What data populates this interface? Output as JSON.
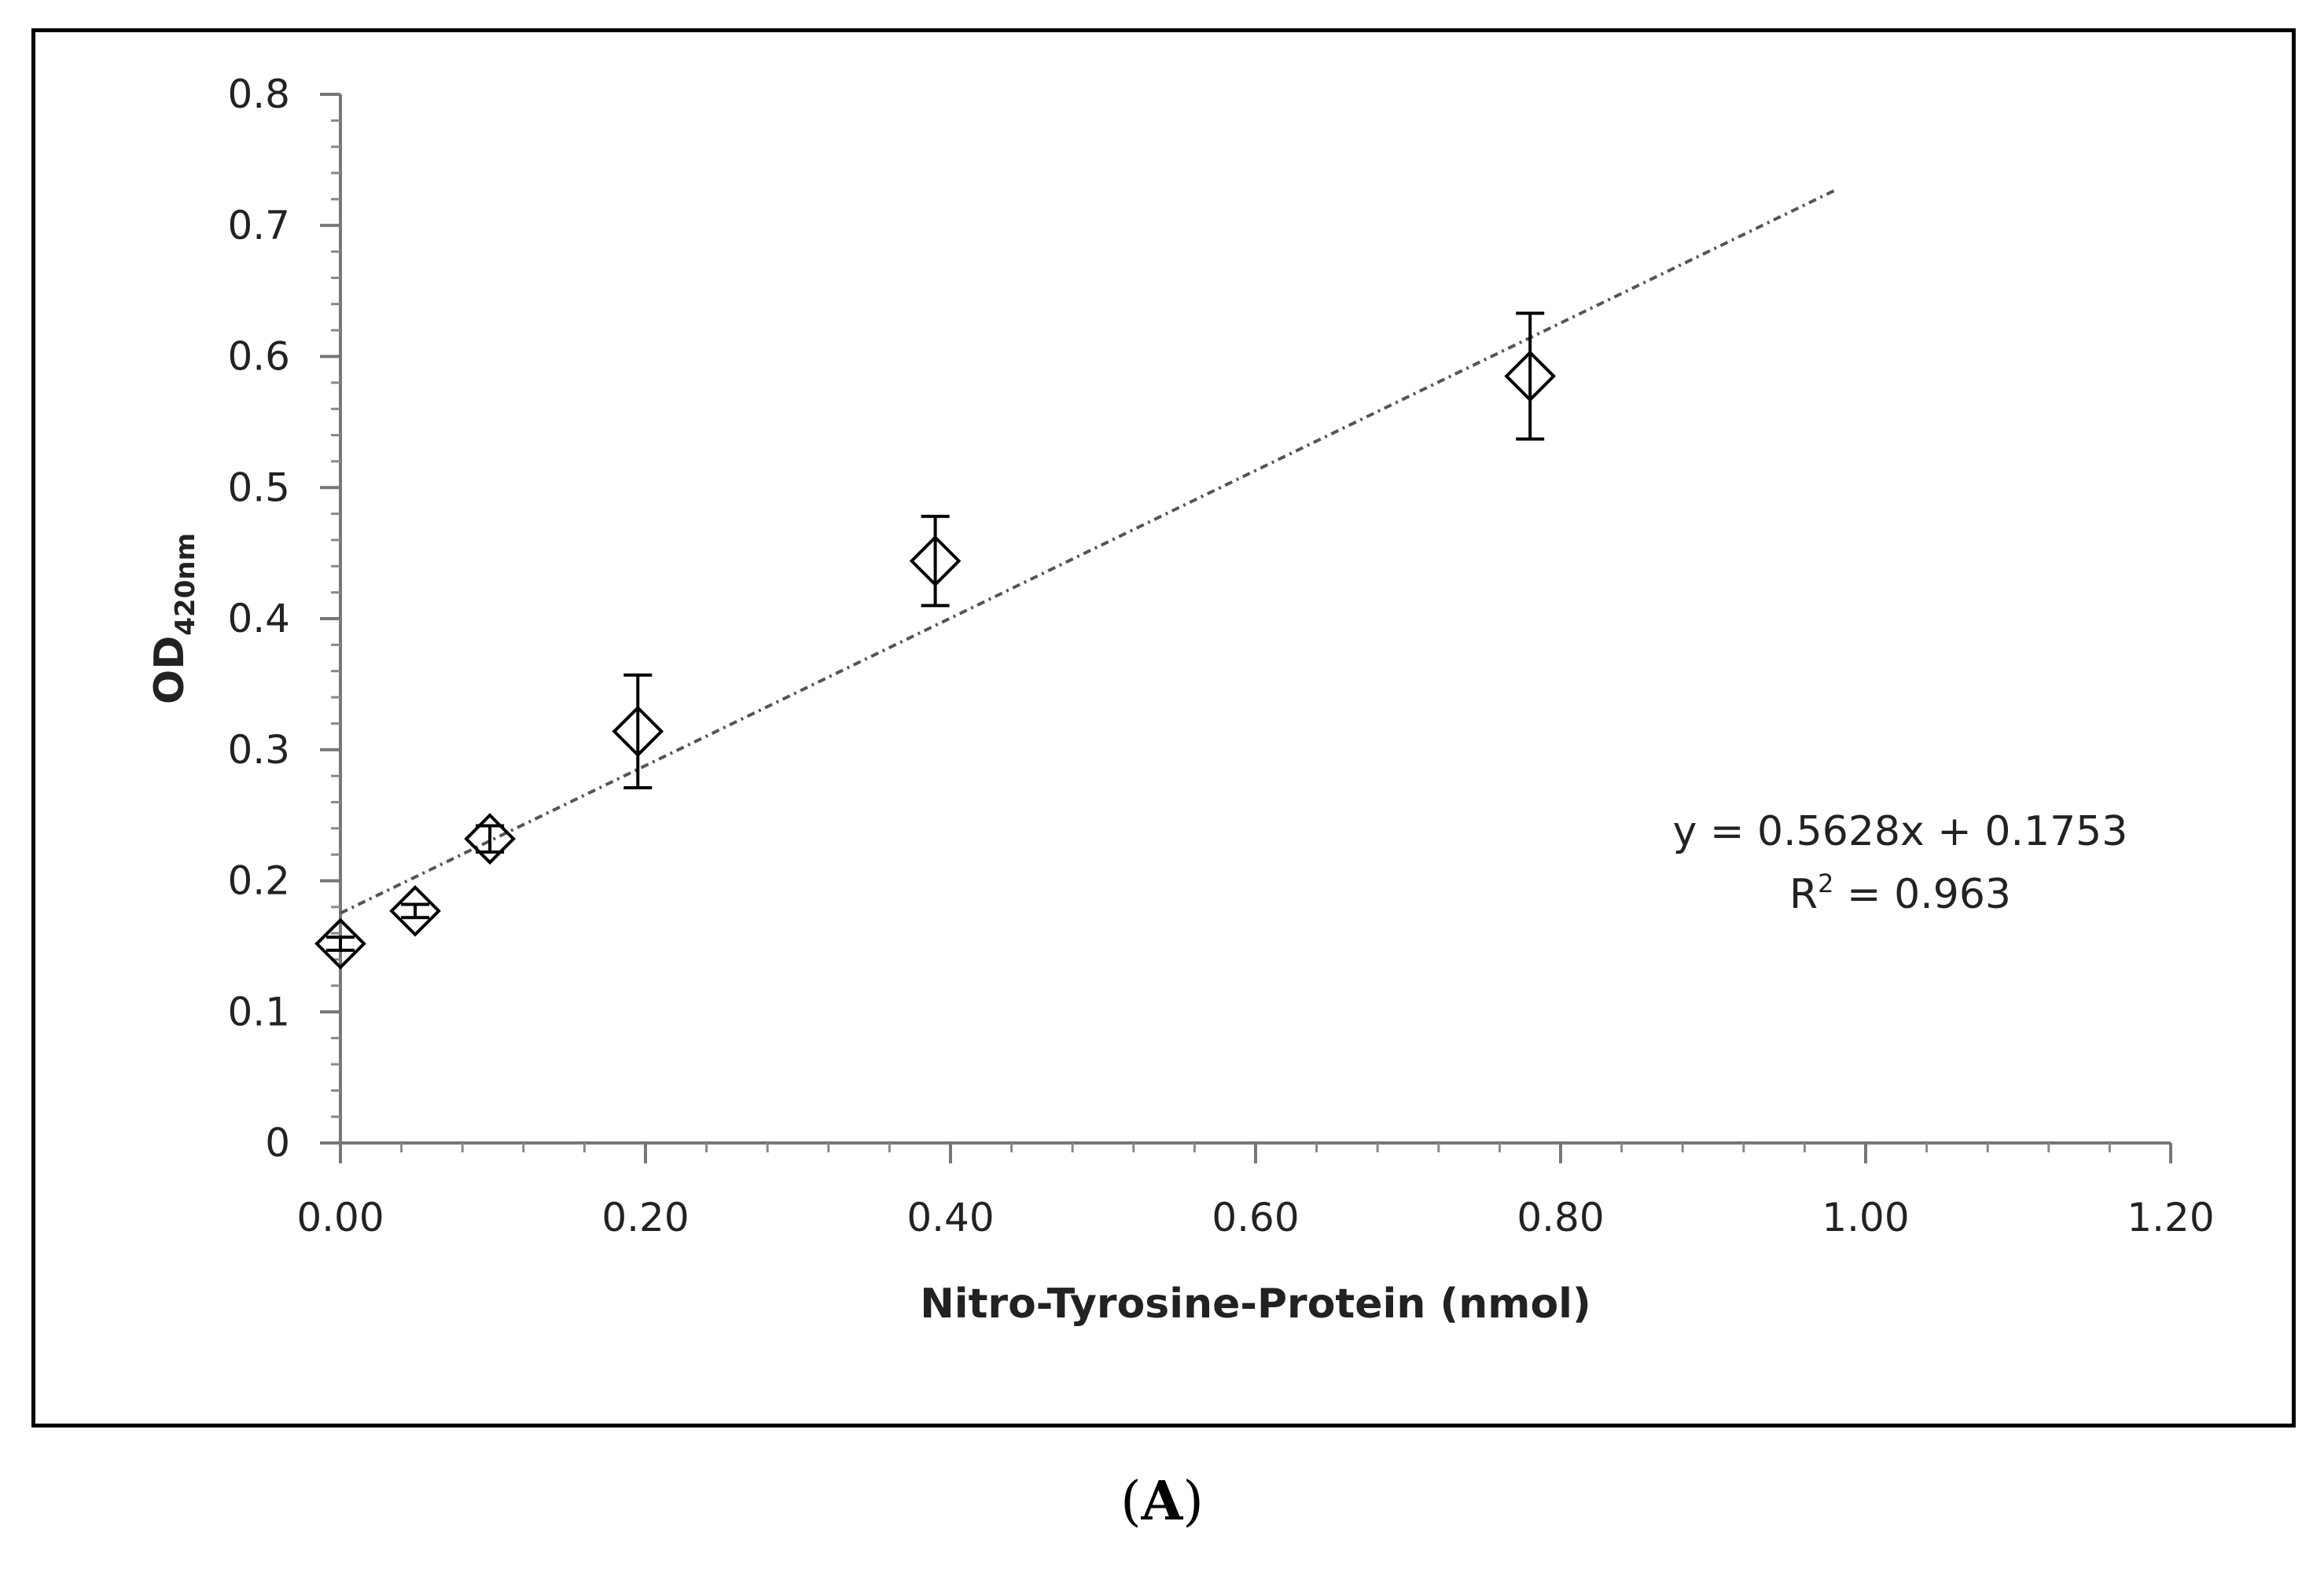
{
  "chart_data": {
    "type": "scatter",
    "title": "",
    "xlabel": "Nitro-Tyrosine-Protein (nmol)",
    "ylabel_main": "OD",
    "ylabel_sub": "420nm",
    "xlim": [
      0,
      1.2
    ],
    "ylim": [
      0,
      0.8
    ],
    "x_ticks": [
      "0.00",
      "0.20",
      "0.40",
      "0.60",
      "0.80",
      "1.00",
      "1.20"
    ],
    "x_tick_values": [
      0,
      0.2,
      0.4,
      0.6,
      0.8,
      1.0,
      1.2
    ],
    "y_ticks": [
      "0",
      "0.1",
      "0.2",
      "0.3",
      "0.4",
      "0.5",
      "0.6",
      "0.7",
      "0.8"
    ],
    "y_tick_values": [
      0,
      0.1,
      0.2,
      0.3,
      0.4,
      0.5,
      0.6,
      0.7,
      0.8
    ],
    "grid": false,
    "series": [
      {
        "name": "OD420nm",
        "marker": "diamond-open",
        "x": [
          0.0,
          0.049,
          0.098,
          0.195,
          0.39,
          0.78
        ],
        "y": [
          0.152,
          0.177,
          0.232,
          0.314,
          0.444,
          0.585
        ],
        "err": [
          0.005,
          0.005,
          0.01,
          0.043,
          0.034,
          0.048
        ]
      }
    ],
    "trendline": {
      "type": "linear",
      "slope": 0.5628,
      "intercept": 0.1753,
      "x_range": [
        0,
        0.98
      ],
      "style": "dotted",
      "equation": "y = 0.5628x + 0.1753",
      "r2_label": "R",
      "r2_sup": "2",
      "r2_value": " = 0.963"
    }
  },
  "panel_label": {
    "open": "(",
    "letter": "A",
    "close": ")"
  }
}
